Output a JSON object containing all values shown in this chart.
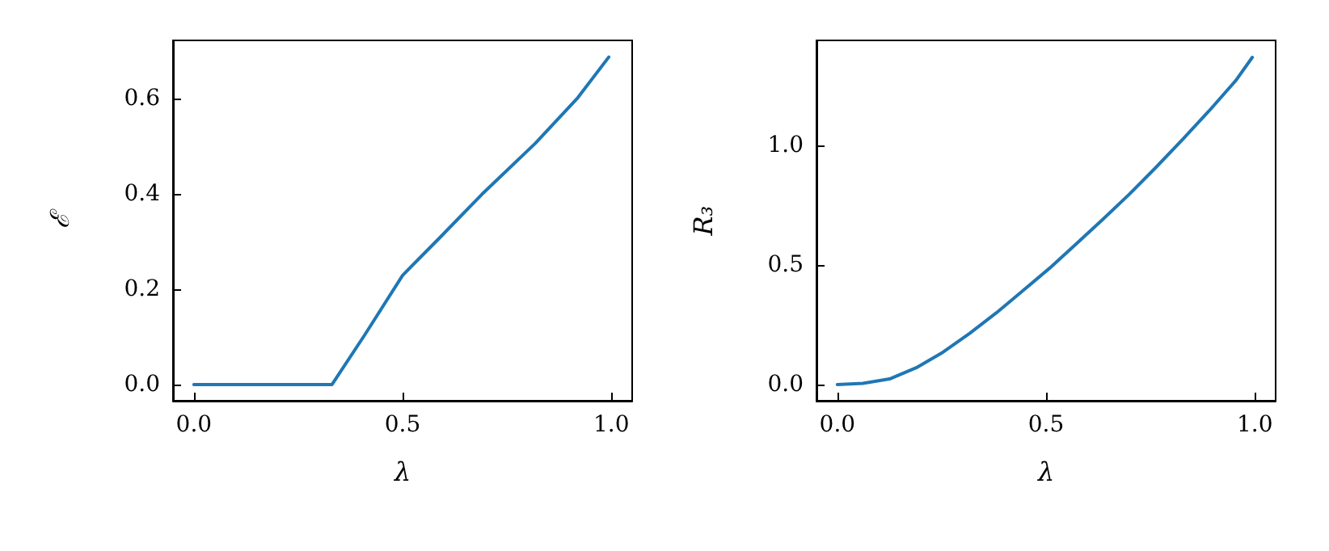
{
  "chart_data": [
    {
      "type": "line",
      "xlabel": "λ",
      "ylabel": "ℰ",
      "x": [
        0,
        0.331,
        0.41,
        0.5,
        0.589,
        0.69,
        0.818,
        0.92,
        0.994
      ],
      "series": [
        {
          "color": "#1f77b4",
          "values": [
            0,
            0,
            0.105,
            0.229,
            0.308,
            0.399,
            0.506,
            0.602,
            0.687
          ]
        }
      ],
      "xlim": [
        -0.05,
        1.05
      ],
      "ylim": [
        -0.034,
        0.722
      ],
      "xticks": [
        {
          "value": 0,
          "label": "0.0"
        },
        {
          "value": 0.5,
          "label": "0.5"
        },
        {
          "value": 1,
          "label": "1.0"
        }
      ],
      "yticks": [
        {
          "value": 0,
          "label": "0.0"
        },
        {
          "value": 0.2,
          "label": "0.2"
        },
        {
          "value": 0.4,
          "label": "0.4"
        },
        {
          "value": 0.6,
          "label": "0.6"
        }
      ],
      "grid": false,
      "marker": "none",
      "line_style": "solid"
    },
    {
      "type": "line",
      "xlabel": "λ",
      "ylabel": "R₃",
      "x": [
        0,
        0.061,
        0.125,
        0.189,
        0.253,
        0.317,
        0.381,
        0.444,
        0.508,
        0.572,
        0.636,
        0.7,
        0.764,
        0.828,
        0.891,
        0.955,
        0.994
      ],
      "series": [
        {
          "color": "#1f77b4",
          "values": [
            0,
            0.005,
            0.023,
            0.07,
            0.135,
            0.214,
            0.3,
            0.392,
            0.486,
            0.588,
            0.691,
            0.797,
            0.91,
            1.027,
            1.146,
            1.273,
            1.369
          ]
        }
      ],
      "xlim": [
        -0.05,
        1.05
      ],
      "ylim": [
        -0.068,
        1.44
      ],
      "xticks": [
        {
          "value": 0,
          "label": "0.0"
        },
        {
          "value": 0.5,
          "label": "0.5"
        },
        {
          "value": 1,
          "label": "1.0"
        }
      ],
      "yticks": [
        {
          "value": 0,
          "label": "0.0"
        },
        {
          "value": 0.5,
          "label": "0.5"
        },
        {
          "value": 1,
          "label": "1.0"
        }
      ],
      "grid": false,
      "marker": "none",
      "line_style": "solid"
    }
  ]
}
